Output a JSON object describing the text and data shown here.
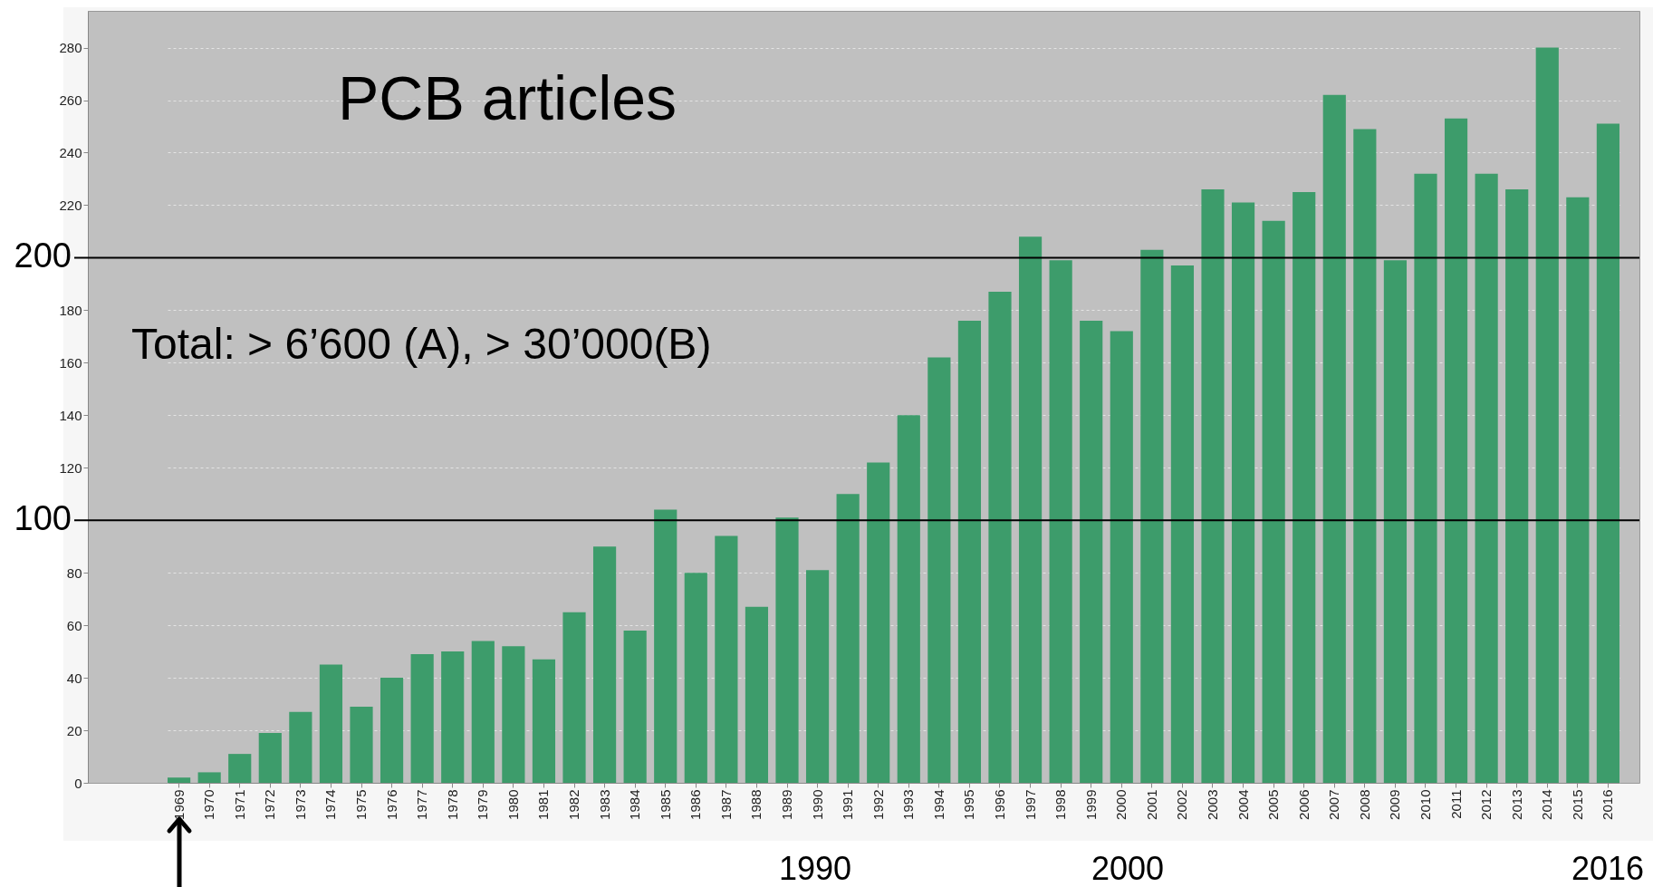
{
  "chart_data": {
    "type": "bar",
    "title": "PCB articles",
    "categories": [
      "1969",
      "1970",
      "1971",
      "1972",
      "1973",
      "1974",
      "1975",
      "1976",
      "1977",
      "1978",
      "1979",
      "1980",
      "1981",
      "1982",
      "1983",
      "1984",
      "1985",
      "1986",
      "1987",
      "1988",
      "1989",
      "1990",
      "1991",
      "1992",
      "1993",
      "1994",
      "1995",
      "1996",
      "1997",
      "1998",
      "1999",
      "2000",
      "2001",
      "2002",
      "2003",
      "2004",
      "2005",
      "2006",
      "2007",
      "2008",
      "2009",
      "2010",
      "2011",
      "2012",
      "2013",
      "2014",
      "2015",
      "2016"
    ],
    "values": [
      2,
      4,
      11,
      19,
      27,
      45,
      29,
      40,
      49,
      50,
      54,
      52,
      47,
      65,
      90,
      58,
      104,
      80,
      94,
      67,
      101,
      81,
      110,
      122,
      140,
      162,
      176,
      187,
      208,
      199,
      176,
      172,
      203,
      197,
      226,
      221,
      214,
      225,
      262,
      249,
      199,
      232,
      253,
      232,
      226,
      280,
      223,
      251
    ],
    "color": "#3d9c6b",
    "ylim": [
      0,
      294
    ],
    "yticks": [
      0,
      20,
      40,
      60,
      80,
      120,
      140,
      160,
      180,
      220,
      240,
      260,
      280
    ],
    "grid": "y",
    "ref_lines": [
      {
        "axis": "y",
        "value": 200,
        "label": "200",
        "color": "#000000"
      },
      {
        "axis": "y",
        "value": 100,
        "label": "100",
        "color": "#000000"
      }
    ],
    "annotations": [
      "Total:  > 6’600 (A), > 30’000(B)",
      "1990",
      "2000",
      "2016"
    ]
  }
}
